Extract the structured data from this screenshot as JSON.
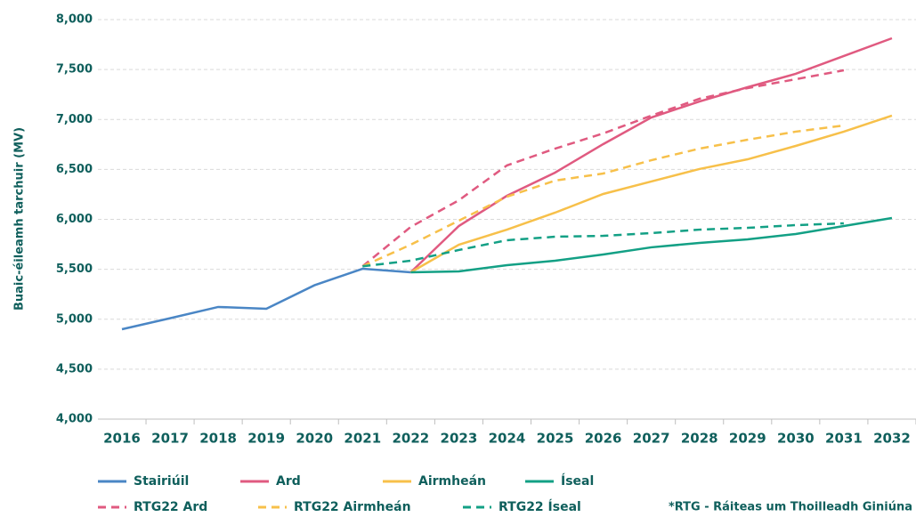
{
  "chart_data": {
    "type": "line",
    "y_label": "Buaic-éileamh tarchuir (MV)",
    "footnote": "*RTG - Ráiteas um Thoilleadh Giniúna",
    "categories": [
      "2016",
      "2017",
      "2018",
      "2019",
      "2020",
      "2021",
      "2022",
      "2023",
      "2024",
      "2025",
      "2026",
      "2027",
      "2028",
      "2029",
      "2030",
      "2031",
      "2032"
    ],
    "ylim": [
      4000,
      8000
    ],
    "yticks": [
      {
        "value": 4000,
        "label": "4,000"
      },
      {
        "value": 4500,
        "label": "4,500"
      },
      {
        "value": 5000,
        "label": "5,000"
      },
      {
        "value": 5500,
        "label": "5,500"
      },
      {
        "value": 6000,
        "label": "6,000"
      },
      {
        "value": 6500,
        "label": "6,500"
      },
      {
        "value": 7000,
        "label": "7,000"
      },
      {
        "value": 7500,
        "label": "7,500"
      },
      {
        "value": 8000,
        "label": "8,000"
      }
    ],
    "grid": true,
    "legend": "bottom",
    "series": [
      {
        "name": "Stairiúil",
        "color": "#4a86c5",
        "dashed": false,
        "values": [
          4900,
          5010,
          5123,
          5105,
          5340,
          5505,
          5470,
          null,
          null,
          null,
          null,
          null,
          null,
          null,
          null,
          null,
          null
        ]
      },
      {
        "name": "Ard",
        "color": "#e05a80",
        "dashed": false,
        "values": [
          null,
          null,
          null,
          null,
          null,
          null,
          5470,
          5933,
          6236,
          6468,
          6753,
          7020,
          7180,
          7323,
          7457,
          7635,
          7813
        ]
      },
      {
        "name": "Airmheán",
        "color": "#f7c04a",
        "dashed": false,
        "values": [
          null,
          null,
          null,
          null,
          null,
          null,
          5470,
          5746,
          5897,
          6067,
          6254,
          6379,
          6504,
          6601,
          6735,
          6878,
          7038
        ]
      },
      {
        "name": "Íseal",
        "color": "#13a085",
        "dashed": false,
        "values": [
          null,
          null,
          null,
          null,
          null,
          null,
          5470,
          5479,
          5541,
          5586,
          5648,
          5720,
          5764,
          5800,
          5853,
          5933,
          6013
        ]
      },
      {
        "name": "RTG22 Ard",
        "color": "#e05a80",
        "dashed": true,
        "values": [
          null,
          null,
          null,
          null,
          null,
          5530,
          5924,
          6191,
          6540,
          6708,
          6860,
          7038,
          7207,
          7314,
          7403,
          7492,
          null
        ]
      },
      {
        "name": "RTG22 Airmheán",
        "color": "#f7c04a",
        "dashed": true,
        "values": [
          null,
          null,
          null,
          null,
          null,
          5530,
          5746,
          5987,
          6227,
          6388,
          6459,
          6592,
          6708,
          6797,
          6878,
          6940,
          null
        ]
      },
      {
        "name": "RTG22 Íseal",
        "color": "#13a085",
        "dashed": true,
        "values": [
          null,
          null,
          null,
          null,
          null,
          5530,
          5586,
          5693,
          5791,
          5826,
          5835,
          5862,
          5897,
          5915,
          5942,
          5960,
          null
        ]
      }
    ]
  }
}
